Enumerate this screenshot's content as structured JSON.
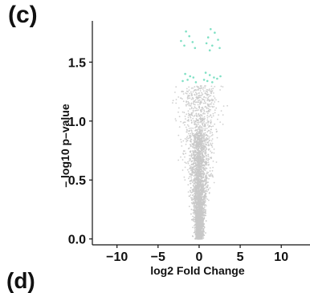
{
  "panel_label": "(c)",
  "next_panel_label": "(d)",
  "colors": {
    "background": "#ffffff",
    "nonsignificant": "#c8c8c8",
    "significant": "#7fe0c4",
    "axis": "#111111"
  },
  "chart_data": {
    "type": "scatter",
    "title": "",
    "xlabel": "log2 Fold Change",
    "ylabel": "– log10 p–value",
    "xlim": [
      -13,
      13.5
    ],
    "ylim": [
      -0.05,
      1.85
    ],
    "x_ticks": [
      -10,
      -5,
      0,
      5,
      10
    ],
    "x_tick_labels": [
      "−10",
      "−5",
      "0",
      "5",
      "10"
    ],
    "y_ticks": [
      0.0,
      0.5,
      1.0,
      1.5
    ],
    "y_tick_labels": [
      "0.0",
      "0.5",
      "1.0",
      "1.5"
    ],
    "grid": false,
    "legend": "none",
    "series": [
      {
        "color": "#7fe0c4",
        "points": [
          [
            -1.6,
            1.76
          ],
          [
            -1.2,
            1.72
          ],
          [
            -2.2,
            1.68
          ],
          [
            -0.8,
            1.67
          ],
          [
            -1.8,
            1.64
          ],
          [
            -0.5,
            1.62
          ],
          [
            1.4,
            1.78
          ],
          [
            1.9,
            1.75
          ],
          [
            1.1,
            1.71
          ],
          [
            2.3,
            1.69
          ],
          [
            0.9,
            1.66
          ],
          [
            1.6,
            1.64
          ],
          [
            2.5,
            1.62
          ],
          [
            1.3,
            1.6
          ],
          [
            -1.7,
            1.4
          ],
          [
            -1.1,
            1.38
          ],
          [
            -0.7,
            1.37
          ],
          [
            -1.4,
            1.35
          ],
          [
            -2.0,
            1.34
          ],
          [
            -0.4,
            1.33
          ],
          [
            0.8,
            1.41
          ],
          [
            1.3,
            1.39
          ],
          [
            1.8,
            1.37
          ],
          [
            2.2,
            1.36
          ],
          [
            1.0,
            1.34
          ],
          [
            1.6,
            1.33
          ],
          [
            2.6,
            1.38
          ],
          [
            0.6,
            1.35
          ]
        ]
      }
    ]
  }
}
